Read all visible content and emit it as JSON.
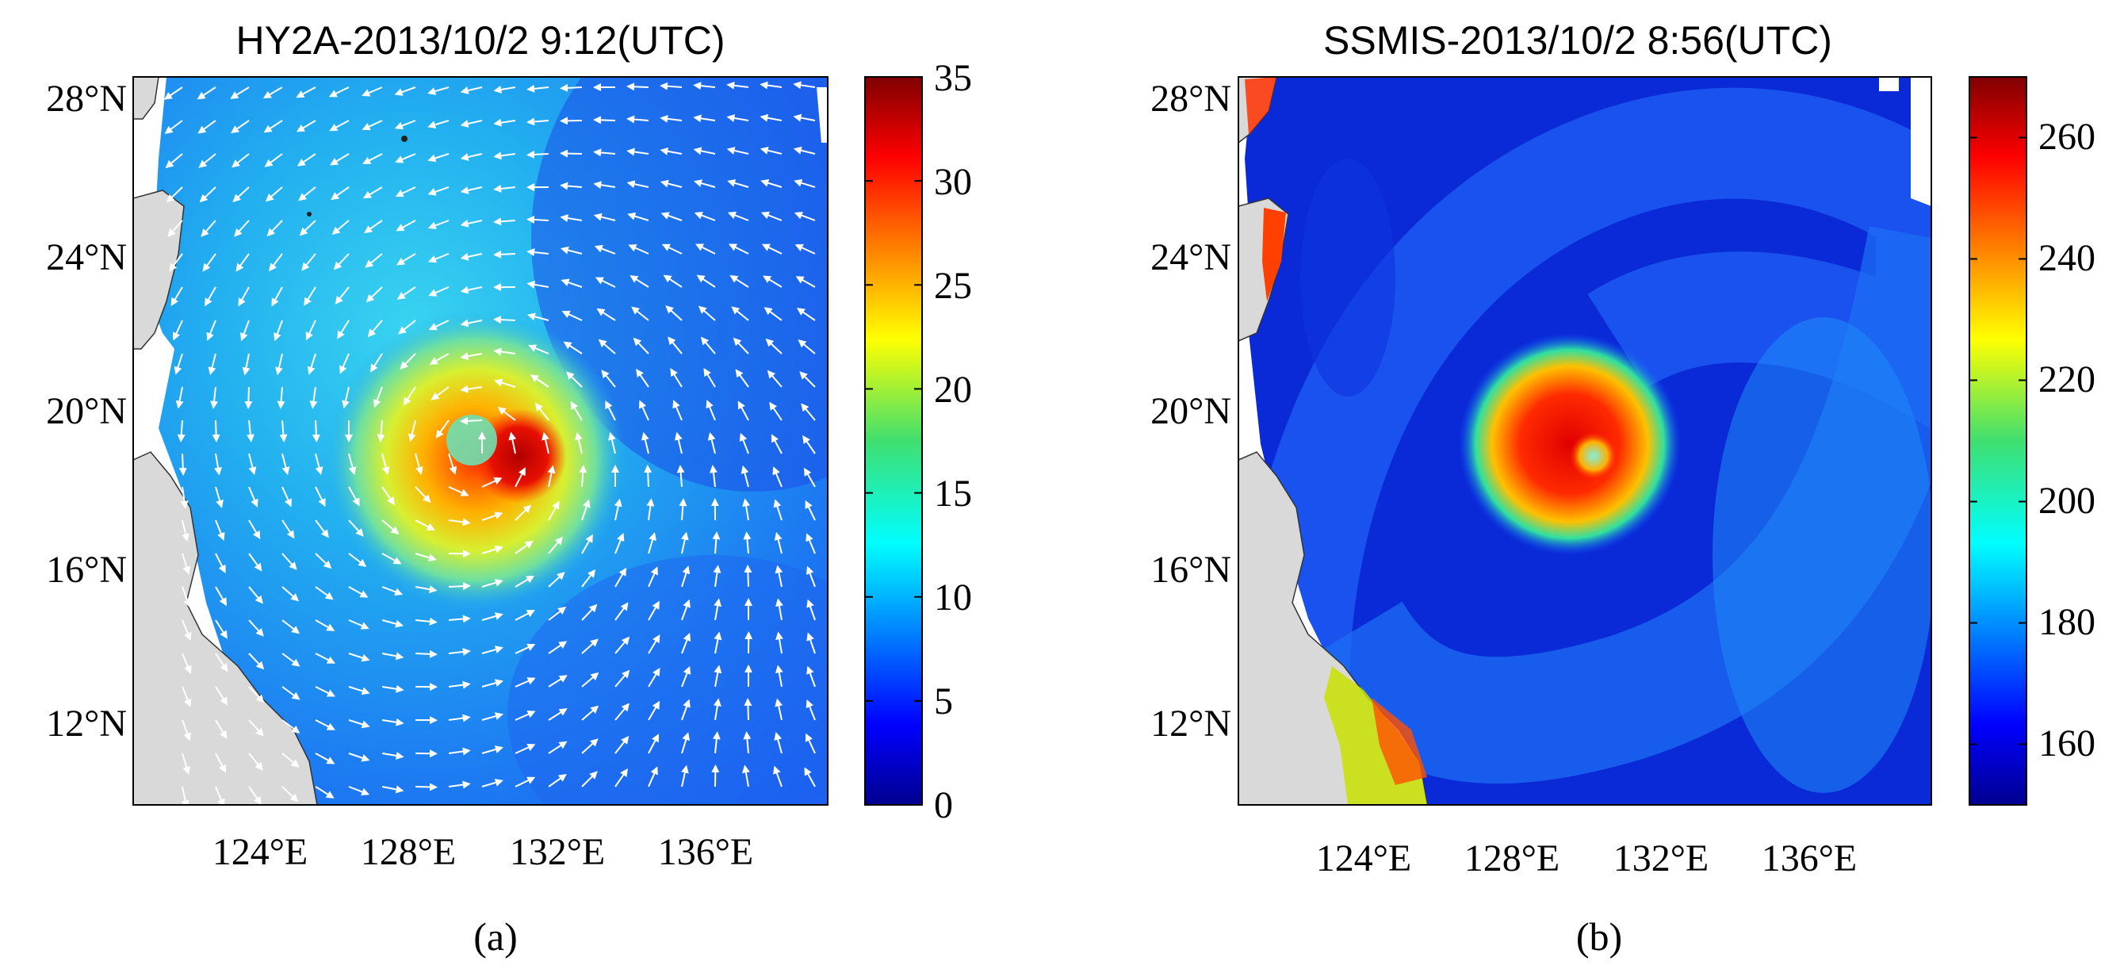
{
  "panels": [
    {
      "id": "a",
      "title": "HY2A-2013/10/2 9:12(UTC)",
      "caption": "(a)",
      "lat_labels": [
        "28°N",
        "24°N",
        "20°N",
        "16°N",
        "12°N"
      ],
      "lon_labels": [
        "124°E",
        "128°E",
        "132°E",
        "136°E"
      ],
      "colorbar": {
        "min": 0,
        "max": 35,
        "ticks": [
          "35",
          "30",
          "25",
          "20",
          "15",
          "10",
          "5",
          "0"
        ]
      }
    },
    {
      "id": "b",
      "title": "SSMIS-2013/10/2 8:56(UTC)",
      "caption": "(b)",
      "lat_labels": [
        "28°N",
        "24°N",
        "20°N",
        "16°N",
        "12°N"
      ],
      "lon_labels": [
        "124°E",
        "128°E",
        "132°E",
        "136°E"
      ],
      "colorbar": {
        "min": 150,
        "max": 270,
        "ticks": [
          "260",
          "240",
          "220",
          "200",
          "180",
          "160"
        ]
      }
    }
  ],
  "colors": {
    "jet_dark_blue": "#00008f",
    "jet_blue": "#0050ff",
    "jet_cyan": "#00e5ff",
    "jet_green": "#3fdf6f",
    "jet_yellow": "#ffef00",
    "jet_orange": "#ff8c00",
    "jet_red": "#e00000",
    "jet_dark_red": "#7f0000",
    "land": "#d9d9d9"
  }
}
